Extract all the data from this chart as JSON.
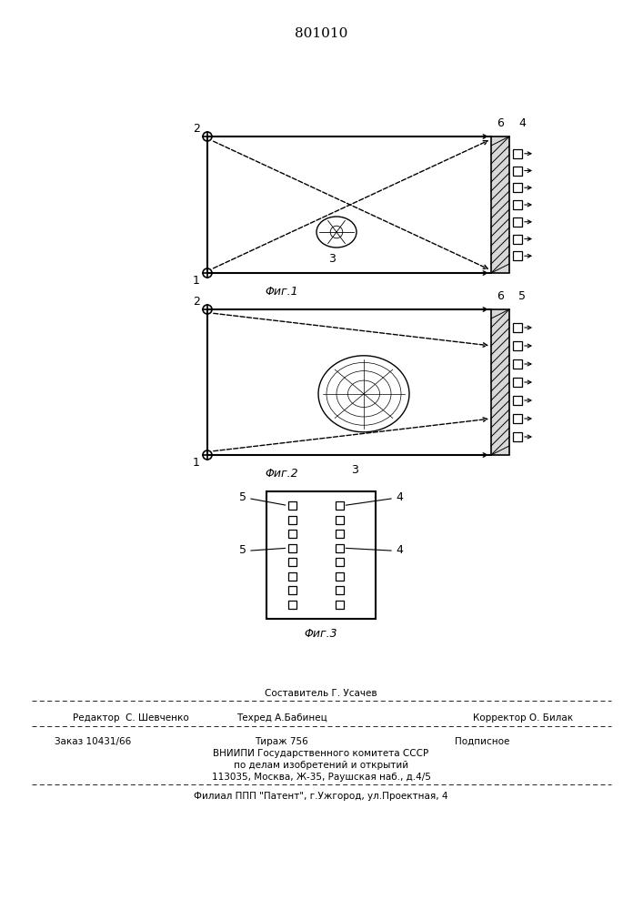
{
  "title": "801010",
  "fig1_caption": "Φиг.1",
  "fig2_caption": "Φиг.2",
  "fig3_caption": "Φиг.3",
  "footer_составитель": "Составитель Г. Усачев",
  "footer_редактор": "Редактор  С. Шевченко",
  "footer_техред": "Техред А.Бабинец",
  "footer_корректор": "Корректор О. Билак",
  "footer_заказ": "Заказ 10431/66",
  "footer_тираж": "Тираж 756",
  "footer_подписное": "Подписное",
  "footer_вниипи": "ВНИИПИ Государственного комитета СССР",
  "footer_поделам": "по делам изобретений и открытий",
  "footer_адрес": "113035, Москва, Ж-35, Раушская наб., д.4/5",
  "footer_филиал": "Филиал ППП \"Патент\", г.Ужгород, ул.Проектная, 4",
  "bg_color": "#ffffff",
  "lc": "#000000"
}
